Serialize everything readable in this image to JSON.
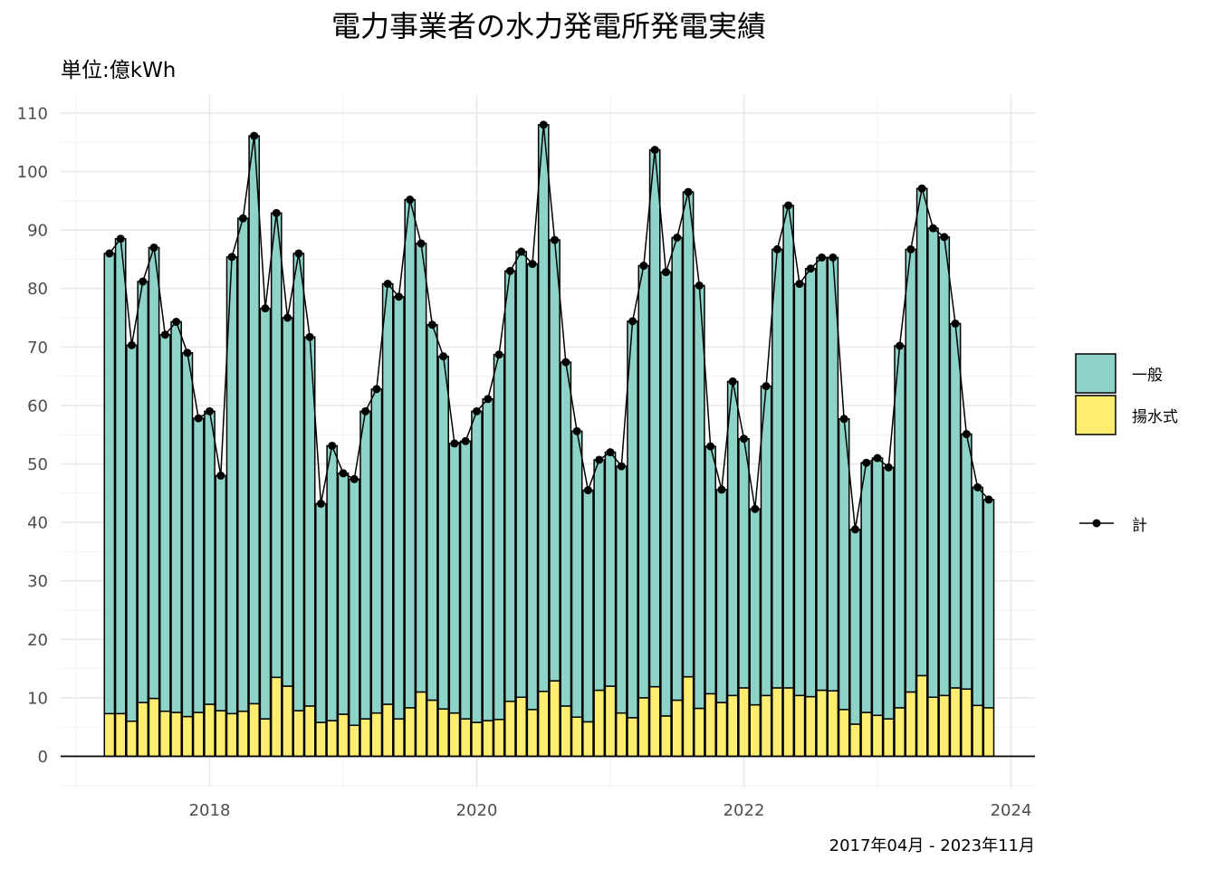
{
  "chart_data": {
    "type": "bar",
    "title": "電力事業者の水力発電所発電実績",
    "subtitle": "単位:億kWh",
    "caption": "2017年04月 - 2023年11月",
    "xlabel": "",
    "ylabel": "",
    "stacked": true,
    "ylim": [
      -5,
      115
    ],
    "yticks": [
      0,
      10,
      20,
      30,
      40,
      50,
      60,
      70,
      80,
      90,
      100,
      110
    ],
    "xticks": [
      "2018",
      "2020",
      "2022",
      "2024"
    ],
    "xlim": [
      "2017-01",
      "2024-03"
    ],
    "grid": true,
    "legend_position": "right",
    "colors": {
      "一般": "#8DD3C7",
      "揚水式": "#FFED6F",
      "計": "#000000"
    },
    "categories": [
      "2017-04",
      "2017-05",
      "2017-06",
      "2017-07",
      "2017-08",
      "2017-09",
      "2017-10",
      "2017-11",
      "2017-12",
      "2018-01",
      "2018-02",
      "2018-03",
      "2018-04",
      "2018-05",
      "2018-06",
      "2018-07",
      "2018-08",
      "2018-09",
      "2018-10",
      "2018-11",
      "2018-12",
      "2019-01",
      "2019-02",
      "2019-03",
      "2019-04",
      "2019-05",
      "2019-06",
      "2019-07",
      "2019-08",
      "2019-09",
      "2019-10",
      "2019-11",
      "2019-12",
      "2020-01",
      "2020-02",
      "2020-03",
      "2020-04",
      "2020-05",
      "2020-06",
      "2020-07",
      "2020-08",
      "2020-09",
      "2020-10",
      "2020-11",
      "2020-12",
      "2021-01",
      "2021-02",
      "2021-03",
      "2021-04",
      "2021-05",
      "2021-06",
      "2021-07",
      "2021-08",
      "2021-09",
      "2021-10",
      "2021-11",
      "2021-12",
      "2022-01",
      "2022-02",
      "2022-03",
      "2022-04",
      "2022-05",
      "2022-06",
      "2022-07",
      "2022-08",
      "2022-09",
      "2022-10",
      "2022-11",
      "2022-12",
      "2023-01",
      "2023-02",
      "2023-03",
      "2023-04",
      "2023-05",
      "2023-06",
      "2023-07",
      "2023-08",
      "2023-09",
      "2023-10",
      "2023-11"
    ],
    "series": [
      {
        "name": "揚水式",
        "type": "bar",
        "values": [
          7.3,
          7.3,
          6.0,
          9.2,
          9.9,
          7.7,
          7.5,
          6.8,
          7.5,
          8.9,
          7.8,
          7.3,
          7.7,
          9.0,
          6.4,
          13.5,
          12.0,
          7.8,
          8.6,
          5.8,
          6.1,
          7.2,
          5.3,
          6.4,
          7.4,
          8.9,
          6.4,
          8.3,
          11.0,
          9.6,
          8.1,
          7.4,
          6.4,
          5.8,
          6.1,
          6.3,
          9.4,
          10.1,
          8.0,
          11.1,
          12.9,
          8.6,
          6.7,
          5.9,
          11.3,
          12.0,
          7.4,
          6.6,
          10.0,
          11.9,
          6.9,
          9.6,
          13.6,
          8.2,
          10.7,
          9.2,
          10.4,
          11.7,
          8.8,
          10.4,
          11.7,
          11.7,
          10.4,
          10.2,
          11.3,
          11.2,
          8.0,
          5.5,
          7.5,
          7.0,
          6.4,
          8.3,
          11.0,
          13.8,
          10.1,
          10.4,
          11.7,
          11.5,
          8.7,
          8.3
        ]
      },
      {
        "name": "一般",
        "type": "bar",
        "values": [
          78.7,
          81.2,
          64.3,
          72.0,
          77.1,
          64.4,
          66.8,
          62.2,
          50.3,
          50.1,
          40.2,
          78.1,
          84.3,
          97.1,
          70.2,
          79.4,
          63.0,
          78.2,
          63.1,
          37.4,
          47.0,
          41.2,
          42.1,
          52.6,
          55.4,
          71.9,
          72.2,
          86.9,
          76.7,
          64.2,
          60.3,
          46.1,
          47.5,
          53.2,
          55.0,
          62.4,
          73.6,
          76.2,
          76.2,
          96.9,
          75.4,
          58.8,
          48.9,
          39.6,
          39.4,
          40.0,
          42.2,
          67.8,
          73.9,
          91.8,
          75.9,
          79.1,
          82.9,
          72.3,
          42.3,
          36.4,
          53.7,
          42.6,
          33.5,
          52.9,
          75.0,
          82.5,
          70.4,
          73.2,
          74.0,
          74.1,
          49.7,
          33.3,
          42.7,
          44.0,
          43.0,
          61.9,
          75.7,
          83.3,
          80.2,
          78.4,
          62.3,
          43.6,
          37.3,
          35.6
        ]
      },
      {
        "name": "計",
        "type": "line",
        "values": [
          86.0,
          88.5,
          70.3,
          81.2,
          87.0,
          72.1,
          74.3,
          69.0,
          57.8,
          59.0,
          48.0,
          85.4,
          92.0,
          106.1,
          76.6,
          92.9,
          75.0,
          86.0,
          71.7,
          43.2,
          53.1,
          48.4,
          47.4,
          59.0,
          62.8,
          80.8,
          78.6,
          95.2,
          87.7,
          73.8,
          68.4,
          53.5,
          53.9,
          59.0,
          61.1,
          68.7,
          83.0,
          86.3,
          84.2,
          108.0,
          88.3,
          67.4,
          55.6,
          45.5,
          50.7,
          52.0,
          49.6,
          74.4,
          83.9,
          103.7,
          82.8,
          88.7,
          96.5,
          80.5,
          53.0,
          45.6,
          64.1,
          54.3,
          42.3,
          63.3,
          86.7,
          94.2,
          80.8,
          83.4,
          85.3,
          85.3,
          57.7,
          38.8,
          50.2,
          51.0,
          49.4,
          70.2,
          86.7,
          97.1,
          90.3,
          88.8,
          74.0,
          55.1,
          46.0,
          43.9
        ]
      }
    ]
  }
}
